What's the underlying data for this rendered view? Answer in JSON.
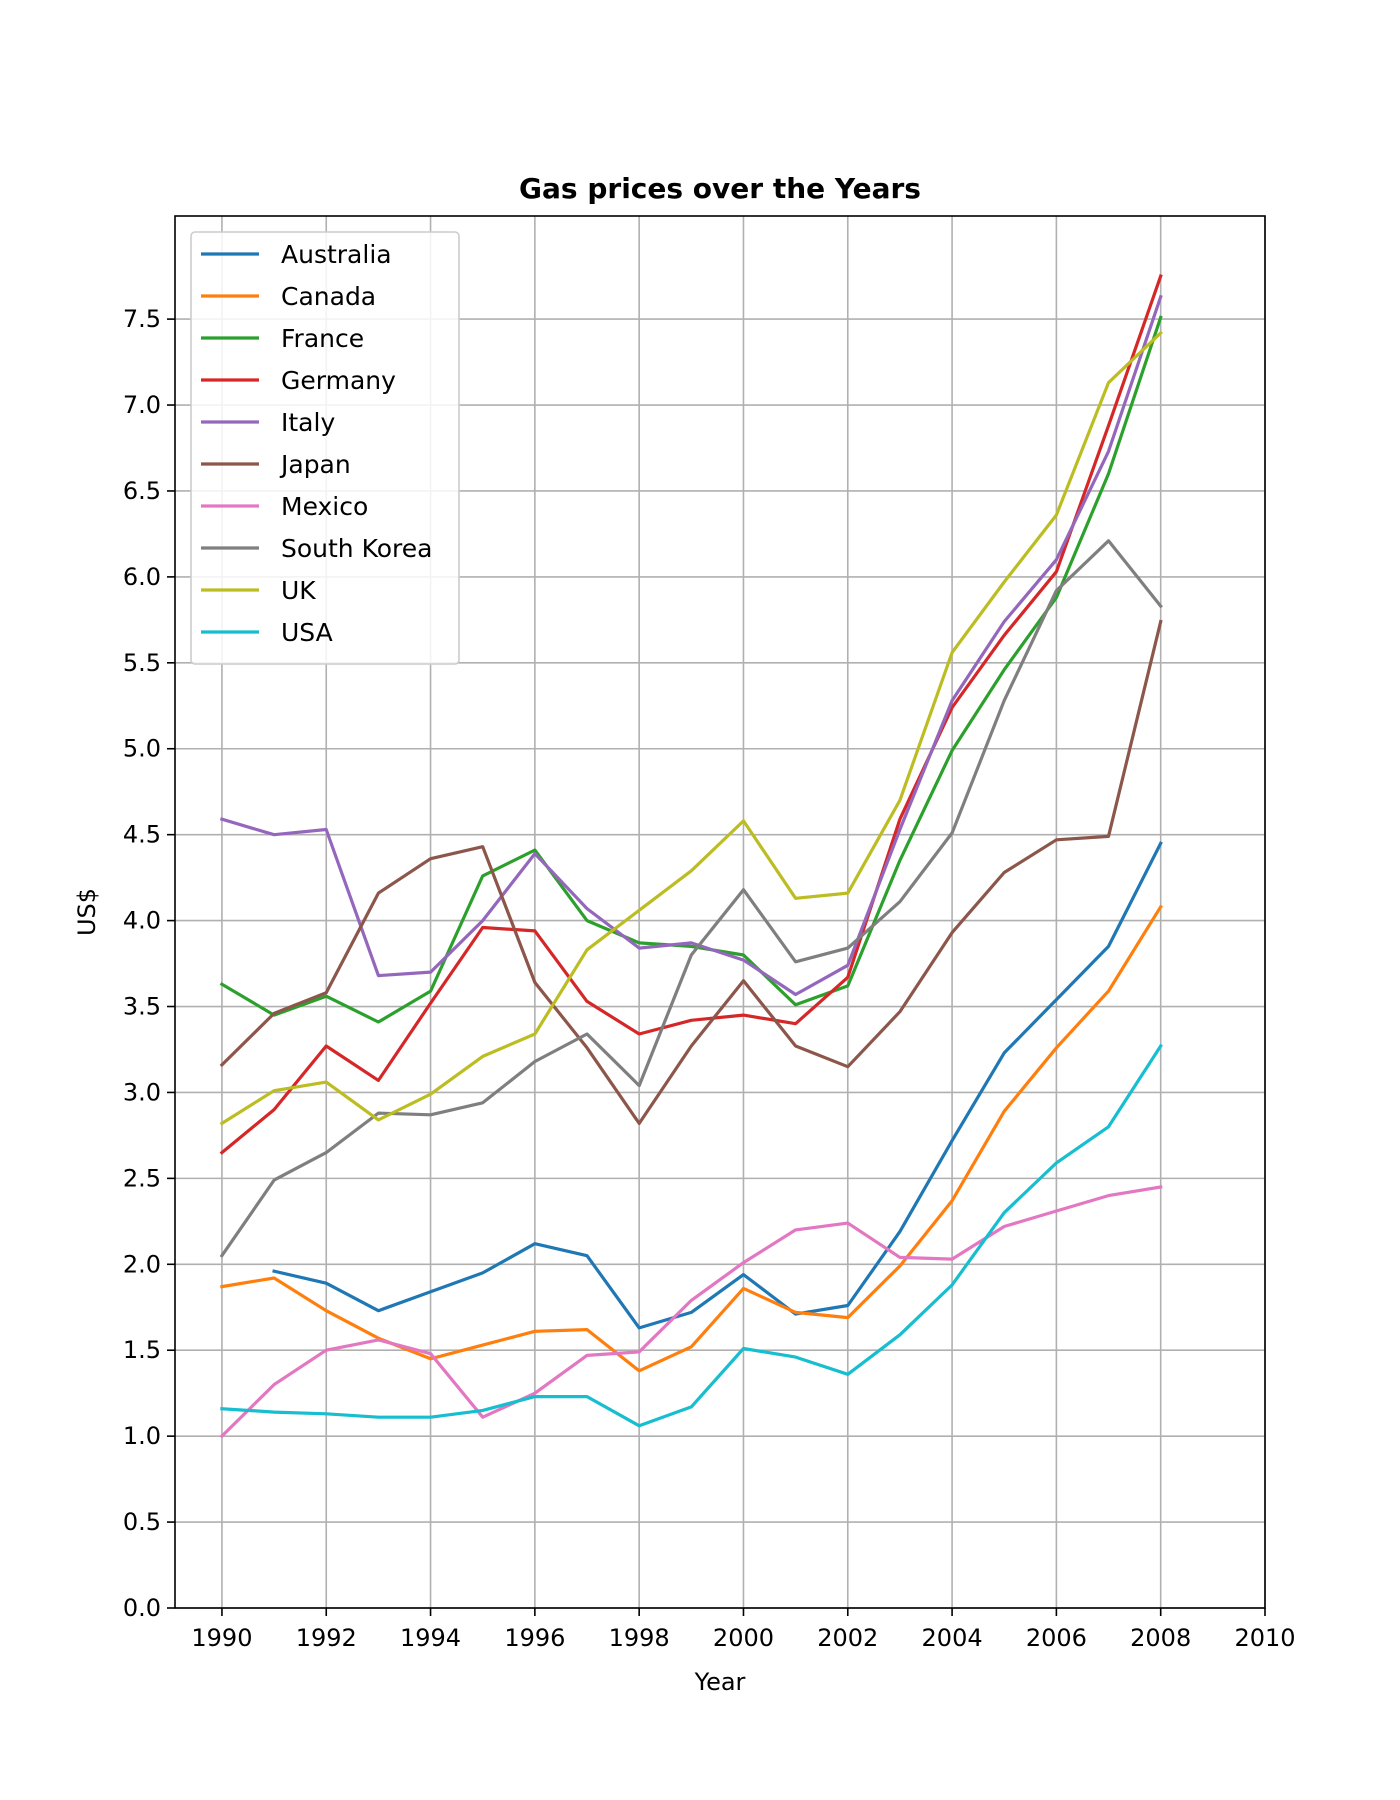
{
  "chart_data": {
    "type": "line",
    "title": "Gas prices over the Years",
    "xlabel": "Year",
    "ylabel": "US$",
    "xlim": [
      1989.1,
      2010
    ],
    "ylim": [
      0,
      8.1
    ],
    "xticks": [
      1990,
      1992,
      1994,
      1996,
      1998,
      2000,
      2002,
      2004,
      2006,
      2008,
      2010
    ],
    "yticks": [
      0.0,
      0.5,
      1.0,
      1.5,
      2.0,
      2.5,
      3.0,
      3.5,
      4.0,
      4.5,
      5.0,
      5.5,
      6.0,
      6.5,
      7.0,
      7.5
    ],
    "ytick_labels": [
      "0.0",
      "0.5",
      "1.0",
      "1.5",
      "2.0",
      "2.5",
      "3.0",
      "3.5",
      "4.0",
      "4.5",
      "5.0",
      "5.5",
      "6.0",
      "6.5",
      "7.0",
      "7.5"
    ],
    "grid": true,
    "legend_position": "upper-left",
    "x": [
      1990,
      1991,
      1992,
      1993,
      1994,
      1995,
      1996,
      1997,
      1998,
      1999,
      2000,
      2001,
      2002,
      2003,
      2004,
      2005,
      2006,
      2007,
      2008
    ],
    "series": [
      {
        "name": "Australia",
        "color": "#1f77b4",
        "values": [
          null,
          1.96,
          1.89,
          1.73,
          1.84,
          1.95,
          2.12,
          2.05,
          1.63,
          1.72,
          1.94,
          1.71,
          1.76,
          2.19,
          2.72,
          3.23,
          3.54,
          3.85,
          4.45
        ]
      },
      {
        "name": "Canada",
        "color": "#ff7f0e",
        "values": [
          1.87,
          1.92,
          1.73,
          1.57,
          1.45,
          1.53,
          1.61,
          1.62,
          1.38,
          1.52,
          1.86,
          1.72,
          1.69,
          1.99,
          2.37,
          2.89,
          3.26,
          3.59,
          4.08
        ]
      },
      {
        "name": "France",
        "color": "#2ca02c",
        "values": [
          3.63,
          3.45,
          3.56,
          3.41,
          3.59,
          4.26,
          4.41,
          4.0,
          3.87,
          3.85,
          3.8,
          3.51,
          3.62,
          4.35,
          4.99,
          5.46,
          5.88,
          6.6,
          7.51
        ]
      },
      {
        "name": "Germany",
        "color": "#d62728",
        "values": [
          2.65,
          2.9,
          3.27,
          3.07,
          3.52,
          3.96,
          3.94,
          3.53,
          3.34,
          3.42,
          3.45,
          3.4,
          3.67,
          4.59,
          5.24,
          5.66,
          6.03,
          6.88,
          7.75
        ]
      },
      {
        "name": "Italy",
        "color": "#9467bd",
        "values": [
          4.59,
          4.5,
          4.53,
          3.68,
          3.7,
          4.0,
          4.39,
          4.07,
          3.84,
          3.87,
          3.77,
          3.57,
          3.74,
          4.53,
          5.28,
          5.74,
          6.1,
          6.73,
          7.63
        ]
      },
      {
        "name": "Japan",
        "color": "#8c564b",
        "values": [
          3.16,
          3.46,
          3.58,
          4.16,
          4.36,
          4.43,
          3.64,
          3.26,
          2.82,
          3.27,
          3.65,
          3.27,
          3.15,
          3.47,
          3.93,
          4.28,
          4.47,
          4.49,
          5.74
        ]
      },
      {
        "name": "Mexico",
        "color": "#e377c2",
        "values": [
          1.0,
          1.3,
          1.5,
          1.56,
          1.48,
          1.11,
          1.25,
          1.47,
          1.49,
          1.79,
          2.01,
          2.2,
          2.24,
          2.04,
          2.03,
          2.22,
          2.31,
          2.4,
          2.45
        ]
      },
      {
        "name": "South Korea",
        "color": "#7f7f7f",
        "values": [
          2.05,
          2.49,
          2.65,
          2.88,
          2.87,
          2.94,
          3.18,
          3.34,
          3.04,
          3.8,
          4.18,
          3.76,
          3.84,
          4.11,
          4.51,
          5.28,
          5.92,
          6.21,
          5.83
        ]
      },
      {
        "name": "UK",
        "color": "#bcbd22",
        "values": [
          2.82,
          3.01,
          3.06,
          2.84,
          2.99,
          3.21,
          3.34,
          3.83,
          4.06,
          4.29,
          4.58,
          4.13,
          4.16,
          4.7,
          5.56,
          5.97,
          6.36,
          7.13,
          7.42
        ]
      },
      {
        "name": "USA",
        "color": "#17becf",
        "values": [
          1.16,
          1.14,
          1.13,
          1.11,
          1.11,
          1.15,
          1.23,
          1.23,
          1.06,
          1.17,
          1.51,
          1.46,
          1.36,
          1.59,
          1.88,
          2.3,
          2.59,
          2.8,
          3.27
        ]
      }
    ]
  }
}
